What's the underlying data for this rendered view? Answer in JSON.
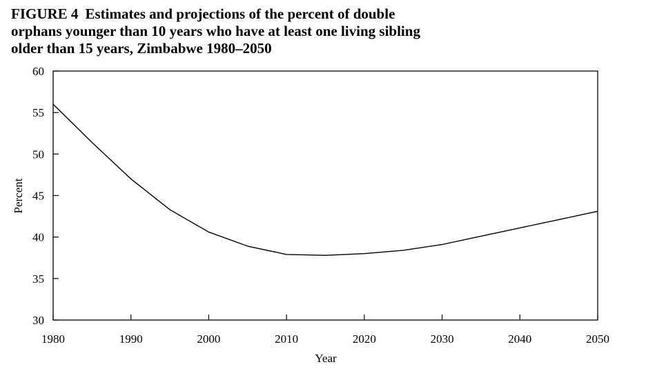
{
  "figure": {
    "label": "FIGURE 4",
    "title_lines": [
      "Estimates and projections of the percent of double",
      "orphans younger than 10 years who have at least one living sibling",
      "older than 15 years, Zimbabwe 1980–2050"
    ]
  },
  "chart_data": {
    "type": "line",
    "title": "Estimates and projections of the percent of double orphans younger than 10 years who have at least one living sibling older than 15 years, Zimbabwe 1980–2050",
    "xlabel": "Year",
    "ylabel": "Percent",
    "xlim": [
      1980,
      2050
    ],
    "ylim": [
      30,
      60
    ],
    "x_ticks": [
      1980,
      1990,
      2000,
      2010,
      2020,
      2030,
      2040,
      2050
    ],
    "y_ticks": [
      30,
      35,
      40,
      45,
      50,
      55,
      60
    ],
    "grid": false,
    "legend": "none",
    "series": [
      {
        "x": [
          1980,
          1985,
          1990,
          1995,
          2000,
          2005,
          2010,
          2015,
          2020,
          2025,
          2030,
          2035,
          2040,
          2045,
          2050
        ],
        "y": [
          56.0,
          51.4,
          47.0,
          43.3,
          40.6,
          38.9,
          37.9,
          37.8,
          38.0,
          38.4,
          39.1,
          40.1,
          41.1,
          42.1,
          43.1
        ]
      }
    ]
  }
}
